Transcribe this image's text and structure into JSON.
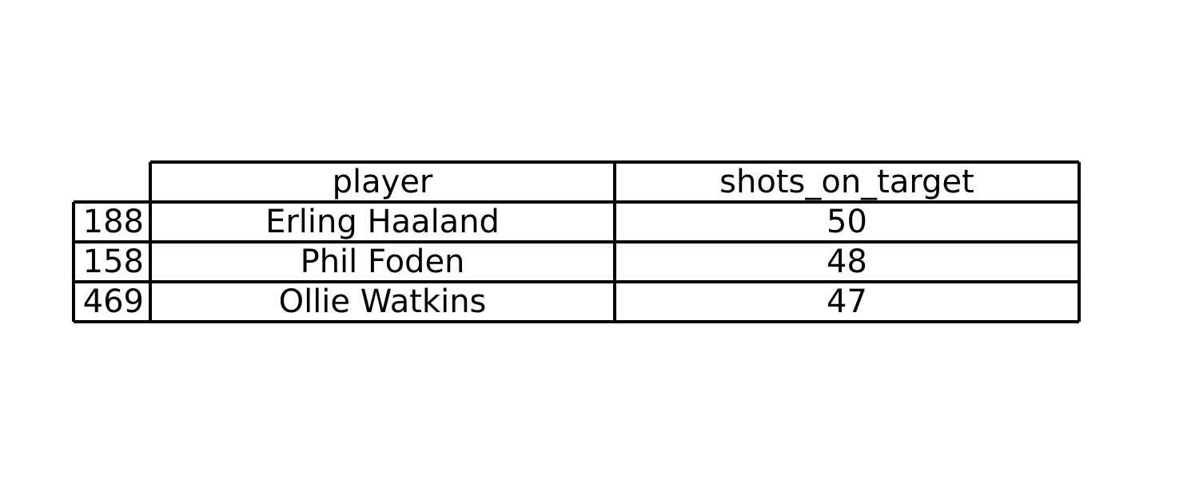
{
  "chart_data": {
    "type": "table",
    "columns": [
      "player",
      "shots_on_target"
    ],
    "index": [
      "188",
      "158",
      "469"
    ],
    "rows": [
      [
        "Erling Haaland",
        "50"
      ],
      [
        "Phil Foden",
        "48"
      ],
      [
        "Ollie Watkins",
        "47"
      ]
    ]
  }
}
